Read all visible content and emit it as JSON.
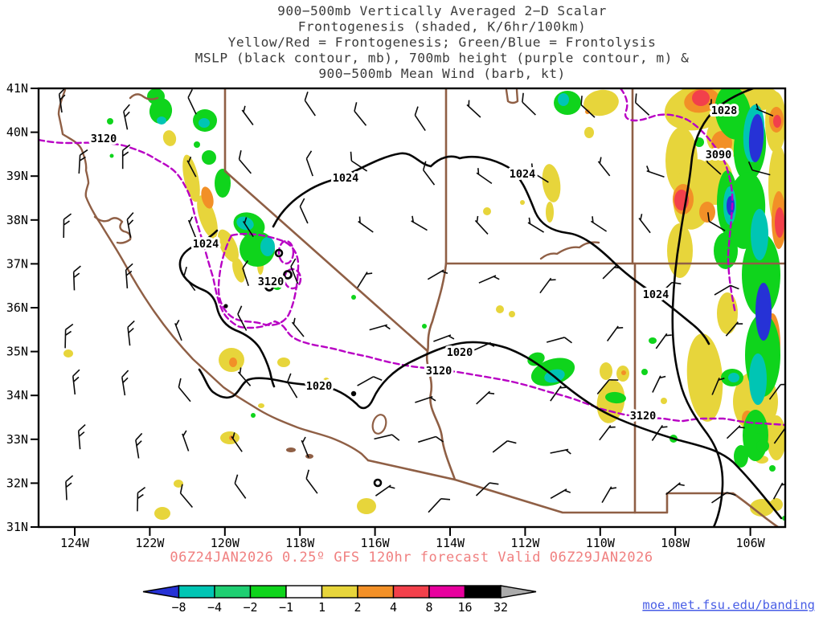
{
  "palette": {
    "blue": "#2632d6",
    "teal": "#00c5b4",
    "sgreen": "#1fcf72",
    "green": "#0fd41c",
    "white": "#ffffff",
    "yellow": "#e7d53b",
    "orange": "#f29027",
    "red": "#f2404b",
    "magenta": "#e8009e",
    "black": "#000000",
    "gray": "#ababab",
    "purple_contour": "#b800c4",
    "brown_border": "#8f5f45",
    "title_gray": "#3b3b3b",
    "red_text": "#f08080",
    "link_blue": "#4a5fe6"
  },
  "title": {
    "lines": [
      "900−500mb Vertically Averaged 2−D Scalar",
      "Frontogenesis (shaded, K/6hr/100km)",
      "Yellow/Red = Frontogenesis;  Green/Blue = Frontolysis",
      "MSLP (black contour, mb), 700mb height (purple contour, m) &",
      "900−500mb Mean Wind (barb, kt)"
    ]
  },
  "footer": {
    "forecast_text": "06Z24JAN2026 0.25º GFS 120hr forecast Valid 06Z29JAN2026",
    "link": "moe.met.fsu.edu/banding"
  },
  "axes": {
    "y_labels": [
      "41N",
      "40N",
      "39N",
      "38N",
      "37N",
      "36N",
      "35N",
      "34N",
      "33N",
      "32N",
      "31N"
    ],
    "x_labels": [
      "124W",
      "122W",
      "120W",
      "118W",
      "116W",
      "114W",
      "112W",
      "110W",
      "108W",
      "106W"
    ]
  },
  "chart_data": {
    "type": "heatmap",
    "title": "900-500mb Vertically Averaged 2-D Scalar Frontogenesis",
    "shading_units": "K/6hr/100km",
    "x_axis": {
      "ticks": [
        "124W",
        "122W",
        "120W",
        "118W",
        "116W",
        "114W",
        "112W",
        "110W",
        "108W",
        "106W"
      ],
      "range_deg_west": [
        125,
        105
      ]
    },
    "y_axis": {
      "ticks": [
        "41N",
        "40N",
        "39N",
        "38N",
        "37N",
        "36N",
        "35N",
        "34N",
        "33N",
        "32N",
        "31N"
      ],
      "range_deg_north": [
        31,
        41
      ]
    },
    "colorbar": {
      "levels": [
        -8,
        -4,
        -2,
        -1,
        1,
        2,
        4,
        8,
        16,
        32
      ],
      "tick_labels": [
        "−8",
        "−4",
        "−2",
        "−1",
        "1",
        "2",
        "4",
        "8",
        "16",
        "32"
      ],
      "colors": [
        "#2632d6",
        "#00c5b4",
        "#1fcf72",
        "#0fd41c",
        "#ffffff",
        "#e7d53b",
        "#f29027",
        "#f2404b",
        "#e8009e",
        "#000000",
        "#ababab"
      ]
    },
    "contours": {
      "mslp_mb": [
        1020,
        1024,
        1028
      ],
      "height_700mb_m": [
        3090,
        3120
      ]
    },
    "contour_labels": [
      {
        "text": "3120"
      },
      {
        "text": "1024"
      },
      {
        "text": "3120"
      },
      {
        "text": "1024"
      },
      {
        "text": "1020"
      },
      {
        "text": "1020"
      },
      {
        "text": "3120"
      },
      {
        "text": "1024"
      },
      {
        "text": "1024"
      },
      {
        "text": "3120"
      },
      {
        "text": "1028"
      },
      {
        "text": "3090"
      }
    ],
    "wind_barbs": {
      "speeds_kt": [
        5,
        10,
        15
      ],
      "direction_summary": "northerly over the Pacific, northwesterly over California and the Great Basin, northeasterly over Arizona/New Mexico"
    }
  }
}
